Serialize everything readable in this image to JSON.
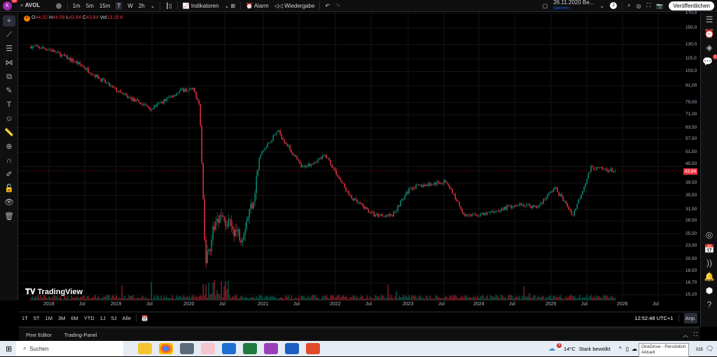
{
  "topbar": {
    "avatar": "K",
    "avatar_badge": "11",
    "symbol": "AVOL",
    "intervals": [
      "1m",
      "5m",
      "15m",
      "T",
      "W",
      "2h"
    ],
    "active_interval": "T",
    "indicators": "Indikatoren",
    "alarm": "Alarm",
    "replay": "Wiedergabe",
    "layout_name": "26.11.2020 Be...",
    "layout_status": "Speichern",
    "badge_count": "2",
    "publish": "Veröffentlichen"
  },
  "legend": {
    "flag": "D",
    "open_label": "O",
    "open": "44,32",
    "high_label": "H",
    "high": "44,58",
    "low_label": "L",
    "low": "43,84",
    "close_label": "C",
    "close": "43,84",
    "vol_label": "Vol",
    "vol": "13,15 K"
  },
  "watermark": "TradingView",
  "right_sidebar": {
    "notification_badge": "1"
  },
  "colors": {
    "up": "#089981",
    "down": "#f23645",
    "background": "#000000"
  },
  "chart_data": {
    "type": "candlestick",
    "scale": "log",
    "last_price": "43,84",
    "y_ticks": [
      "170,0",
      "150,0",
      "130,0",
      "115,0",
      "103,0",
      "91,00",
      "79,00",
      "71,00",
      "63,50",
      "57,50",
      "51,50",
      "45,50",
      "39,50",
      "35,50",
      "31,50",
      "28,50",
      "25,50",
      "23,00",
      "20,50",
      "18,50",
      "16,70",
      "15,10"
    ],
    "x_ticks": [
      "2018",
      "Jul",
      "2019",
      "Jul",
      "2020",
      "Jul",
      "2021",
      "Jul",
      "2022",
      "Jul",
      "2023",
      "Jul",
      "2024",
      "Jul",
      "2025",
      "Jul",
      "2026",
      "Jul"
    ],
    "approx_close_path": [
      [
        "2017-10",
        128
      ],
      [
        "2018-01",
        125
      ],
      [
        "2018-06",
        110
      ],
      [
        "2018-10",
        95
      ],
      [
        "2019-01",
        85
      ],
      [
        "2019-06",
        75
      ],
      [
        "2019-11",
        88
      ],
      [
        "2020-01",
        88
      ],
      [
        "2020-02",
        78
      ],
      [
        "2020-03",
        20
      ],
      [
        "2020-05",
        30
      ],
      [
        "2020-09",
        25
      ],
      [
        "2020-11",
        35
      ],
      [
        "2020-12",
        50
      ],
      [
        "2021-03",
        62
      ],
      [
        "2021-07",
        45
      ],
      [
        "2021-11",
        50
      ],
      [
        "2022-03",
        35
      ],
      [
        "2022-07",
        30
      ],
      [
        "2022-10",
        30
      ],
      [
        "2023-01",
        38
      ],
      [
        "2023-07",
        40
      ],
      [
        "2023-10",
        30
      ],
      [
        "2024-01",
        30
      ],
      [
        "2024-07",
        33
      ],
      [
        "2024-10",
        32
      ],
      [
        "2025-01",
        38
      ],
      [
        "2025-04",
        30
      ],
      [
        "2025-07",
        45
      ],
      [
        "2025-11",
        43.84
      ]
    ]
  },
  "range_buttons": [
    "1T",
    "5T",
    "1M",
    "3M",
    "6M",
    "YTD",
    "1J",
    "5J",
    "Alle"
  ],
  "clock": "12:52:48 UTC+1",
  "adjust": "Anp.",
  "bottom_tabs": [
    "Pine Editor",
    "Trading-Panel"
  ],
  "taskbar": {
    "search": "Suchen",
    "weather": "14°C",
    "weather_text": "Stark bewölkt",
    "weather_badge": "9",
    "tooltip_line1": "OneDrive - Persönlich",
    "tooltip_line2": "Aktuell",
    "date_fragment": "025"
  }
}
